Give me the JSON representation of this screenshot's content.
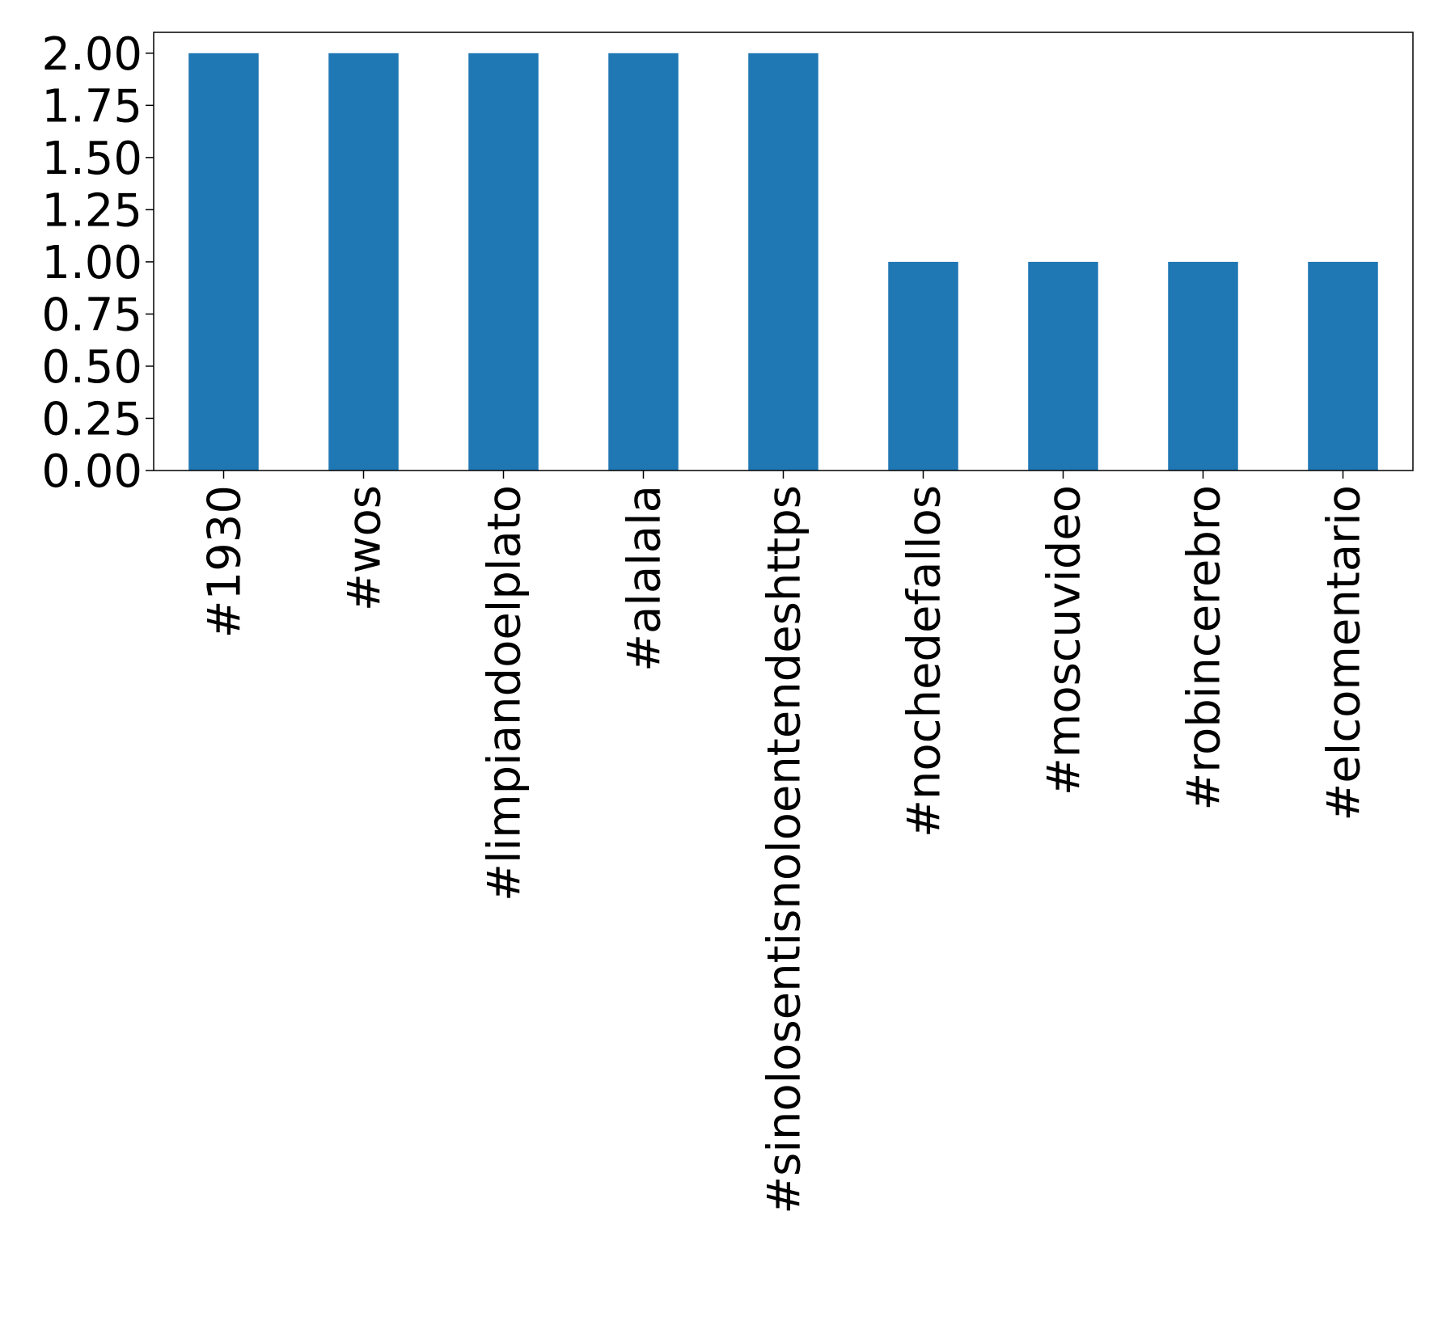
{
  "chart_data": {
    "type": "bar",
    "title": "",
    "xlabel": "",
    "ylabel": "",
    "categories": [
      "#1930",
      "#wos",
      "#limpiandoelplato",
      "#alalala",
      "#sinolosentisnoloentendeshttps",
      "#nochedefallos",
      "#moscuvideo",
      "#robincerebro",
      "#elcomentario"
    ],
    "values": [
      2,
      2,
      2,
      2,
      2,
      1,
      1,
      1,
      1
    ],
    "ylim": [
      0,
      2.1
    ],
    "yticks": [
      "0.00",
      "0.25",
      "0.50",
      "0.75",
      "1.00",
      "1.25",
      "1.50",
      "1.75",
      "2.00"
    ],
    "grid": false,
    "legend": "none",
    "colors": {
      "bar": "#1f77b4",
      "axis": "#000000",
      "background": "#ffffff"
    }
  }
}
